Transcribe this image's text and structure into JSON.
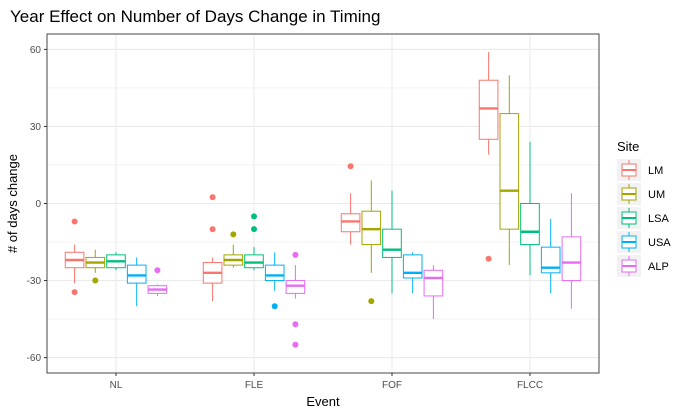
{
  "chart_data": {
    "type": "boxplot",
    "title": "Year Effect on Number of Days Change in Timing",
    "xlabel": "Event",
    "ylabel": "# of days change",
    "categories": [
      "NL",
      "FLE",
      "FOF",
      "FLCC"
    ],
    "ylim": [
      -66,
      66
    ],
    "yticks": [
      -60,
      -30,
      0,
      30,
      60
    ],
    "grid": true,
    "legend": {
      "title": "Site",
      "position": "right"
    },
    "series": [
      {
        "name": "LM",
        "color": "#F8766D",
        "boxes": [
          {
            "min": -31,
            "q1": -25,
            "median": -22,
            "q3": -19,
            "max": -16,
            "outliers": [
              -7,
              -34.5
            ]
          },
          {
            "min": -38,
            "q1": -31,
            "median": -27,
            "q3": -23,
            "max": -21,
            "outliers": [
              2.5,
              -10
            ]
          },
          {
            "min": -16,
            "q1": -11,
            "median": -7,
            "q3": -4,
            "max": 4,
            "outliers": [
              14.5
            ]
          },
          {
            "min": 19,
            "q1": 25,
            "median": 37,
            "q3": 48,
            "max": 59,
            "outliers": [
              -21.5
            ]
          }
        ]
      },
      {
        "name": "UM",
        "color": "#A3A500",
        "boxes": [
          {
            "min": -27,
            "q1": -25,
            "median": -23,
            "q3": -21,
            "max": -18,
            "outliers": [
              -30
            ]
          },
          {
            "min": -25,
            "q1": -24,
            "median": -22,
            "q3": -20,
            "max": -16,
            "outliers": [
              -12
            ]
          },
          {
            "min": -27,
            "q1": -16,
            "median": -10,
            "q3": -3,
            "max": 9,
            "outliers": [
              -38
            ]
          },
          {
            "min": -24,
            "q1": -10,
            "median": 5,
            "q3": 35,
            "max": 50,
            "outliers": []
          }
        ]
      },
      {
        "name": "LSA",
        "color": "#00BF7D",
        "boxes": [
          {
            "min": -26,
            "q1": -25,
            "median": -22.5,
            "q3": -20,
            "max": -19,
            "outliers": []
          },
          {
            "min": -26,
            "q1": -25,
            "median": -23,
            "q3": -20,
            "max": -17,
            "outliers": [
              -5,
              -10
            ]
          },
          {
            "min": -35,
            "q1": -21,
            "median": -18,
            "q3": -10,
            "max": 5,
            "outliers": []
          },
          {
            "min": -28,
            "q1": -16,
            "median": -11,
            "q3": 0,
            "max": 24,
            "outliers": []
          }
        ]
      },
      {
        "name": "USA",
        "color": "#00B0F6",
        "boxes": [
          {
            "min": -40,
            "q1": -31,
            "median": -28,
            "q3": -24,
            "max": -21,
            "outliers": []
          },
          {
            "min": -34,
            "q1": -30,
            "median": -28,
            "q3": -24,
            "max": -19,
            "outliers": [
              -40
            ]
          },
          {
            "min": -35,
            "q1": -29,
            "median": -27,
            "q3": -20,
            "max": -19,
            "outliers": []
          },
          {
            "min": -35,
            "q1": -27,
            "median": -25,
            "q3": -17,
            "max": -6,
            "outliers": []
          }
        ]
      },
      {
        "name": "ALP",
        "color": "#E76BF3",
        "boxes": [
          {
            "min": -36,
            "q1": -35,
            "median": -33.5,
            "q3": -32,
            "max": -31.5,
            "outliers": [
              -26
            ]
          },
          {
            "min": -37,
            "q1": -35,
            "median": -32,
            "q3": -30,
            "max": -24,
            "outliers": [
              -20,
              -47,
              -55
            ]
          },
          {
            "min": -45,
            "q1": -36,
            "median": -29,
            "q3": -26,
            "max": -24,
            "outliers": []
          },
          {
            "min": -41,
            "q1": -30,
            "median": -23,
            "q3": -13,
            "max": 4,
            "outliers": []
          }
        ]
      }
    ]
  }
}
